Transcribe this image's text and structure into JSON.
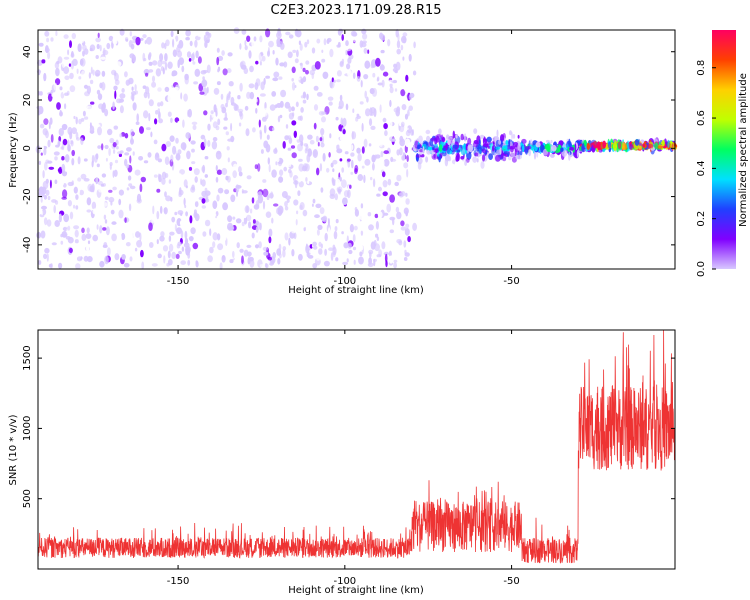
{
  "figure": {
    "title": "C2E3.2023.171.09.28.R15"
  },
  "chart_data": [
    {
      "type": "heatmap",
      "xlabel": "Height of straight line (km)",
      "ylabel": "Frequency (Hz)",
      "xlim": [
        -192,
        -1
      ],
      "ylim": [
        -50,
        49
      ],
      "x_ticks": [
        -150,
        -100,
        -50
      ],
      "y_ticks": [
        -40,
        -20,
        0,
        20,
        40
      ],
      "grid": false,
      "colorbar": {
        "label": "Normalized spectral amplitude",
        "range": [
          0.0,
          0.95
        ],
        "ticks": [
          0.0,
          0.2,
          0.4,
          0.6,
          0.8
        ],
        "colors": [
          "#ffffff",
          "#d8c8ff",
          "#8000ff",
          "#2040ff",
          "#00e0ff",
          "#00ff60",
          "#c0ff00",
          "#ffd000",
          "#ff4000",
          "#ff0060"
        ]
      },
      "regions": [
        {
          "x_range": [
            -192,
            -79
          ],
          "f_center": 0,
          "f_spread": 49,
          "amplitude": 0.1,
          "description": "broadband noise"
        },
        {
          "x_range": [
            -79,
            -47
          ],
          "f_center": 0,
          "f_spread": 8,
          "amplitude": 0.3,
          "description": "signal band"
        },
        {
          "x_range": [
            -47,
            -29
          ],
          "f_center": 0,
          "f_spread": 4,
          "amplitude": 0.35
        },
        {
          "x_range": [
            -29,
            -1
          ],
          "f_center": 1,
          "f_spread": 2,
          "amplitude": 0.8
        }
      ]
    },
    {
      "type": "line",
      "xlabel": "Height of straight line (km)",
      "ylabel": "SNR (10 * v/v)",
      "xlim": [
        -192,
        -1
      ],
      "ylim": [
        0,
        1700
      ],
      "x_ticks": [
        -150,
        -100,
        -50
      ],
      "y_ticks": [
        500,
        1000,
        1500
      ],
      "grid": false,
      "color": "#ee3333",
      "segments": [
        {
          "x_range": [
            -192,
            -80
          ],
          "base": 150,
          "amplitude": 120
        },
        {
          "x_range": [
            -80,
            -47
          ],
          "base": 300,
          "amplitude": 300
        },
        {
          "x_range": [
            -47,
            -30
          ],
          "base": 130,
          "amplitude": 150
        },
        {
          "x_range": [
            -30,
            -1
          ],
          "base": 1000,
          "amplitude": 500
        }
      ]
    }
  ]
}
